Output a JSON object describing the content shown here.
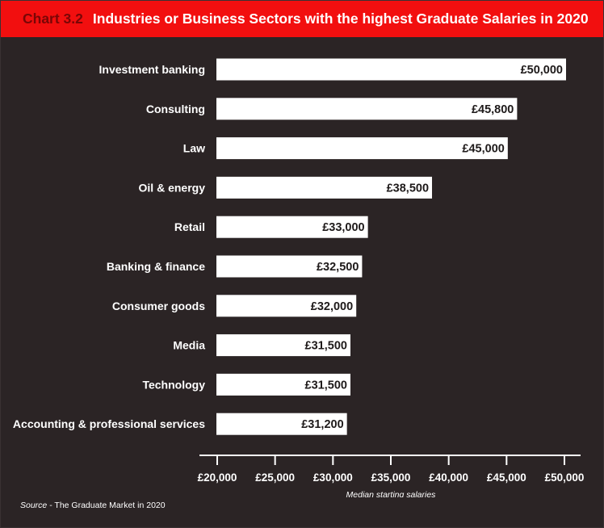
{
  "header": {
    "chart_number": "Chart 3.2",
    "title": "Industries or Business Sectors with the highest Graduate Salaries in 2020"
  },
  "chart_data": {
    "type": "bar",
    "orientation": "horizontal",
    "categories": [
      "Investment banking",
      "Consulting",
      "Law",
      "Oil & energy",
      "Retail",
      "Banking & finance",
      "Consumer goods",
      "Media",
      "Technology",
      "Accounting & professional services"
    ],
    "values": [
      50000,
      45800,
      45000,
      38500,
      33000,
      32500,
      32000,
      31500,
      31500,
      31200
    ],
    "value_labels": [
      "£50,000",
      "£45,800",
      "£45,000",
      "£38,500",
      "£33,000",
      "£32,500",
      "£32,000",
      "£31,500",
      "£31,500",
      "£31,200"
    ],
    "xlabel": "Median starting salaries",
    "xlim": [
      20000,
      50000
    ],
    "xticks": [
      20000,
      25000,
      30000,
      35000,
      40000,
      45000,
      50000
    ],
    "xtick_labels": [
      "£20,000",
      "£25,000",
      "£30,000",
      "£35,000",
      "£40,000",
      "£45,000",
      "£50,000"
    ],
    "grid": false,
    "colors": {
      "bar": "#ffffff",
      "background": "#2b2425",
      "header": "#f20f0f",
      "chart_number": "#7a0606"
    }
  },
  "footer": {
    "source_prefix": "Source",
    "source_text": " - The Graduate Market in 2020"
  }
}
